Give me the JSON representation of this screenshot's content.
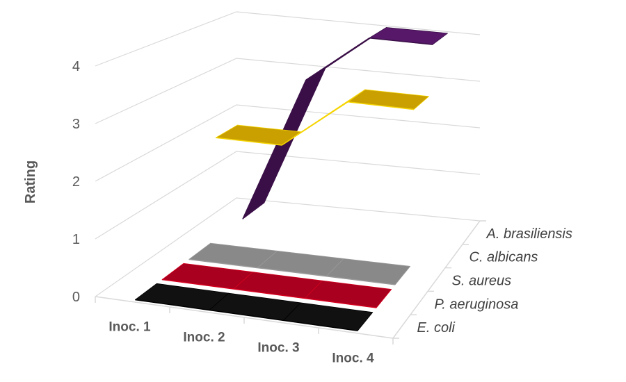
{
  "chart_data": {
    "type": "line",
    "variant": "3d-ribbon",
    "title": "",
    "ylabel": "Rating",
    "xlabel": "",
    "ylim": [
      0,
      4
    ],
    "yticks": [
      "0",
      "1",
      "2",
      "3",
      "4"
    ],
    "categories": [
      "Inoc. 1",
      "Inoc. 2",
      "Inoc. 3",
      "Inoc. 4"
    ],
    "grid": true,
    "series": [
      {
        "name": "E. coli",
        "values": [
          0,
          0,
          0,
          0
        ],
        "color": "#111111",
        "edge": "#000000"
      },
      {
        "name": "P. aeruginosa",
        "values": [
          0,
          0,
          0,
          0
        ],
        "color": "#a8001e",
        "edge": "#d4001f"
      },
      {
        "name": "S. aureus",
        "values": [
          0,
          0,
          0,
          0
        ],
        "color": "#898989",
        "edge": "#9a9a9a"
      },
      {
        "name": "C. albicans",
        "values": [
          2,
          2,
          3,
          3
        ],
        "color": "#c9a000",
        "edge": "#f5d400"
      },
      {
        "name": "A. brasiliensis",
        "values": [
          0,
          3,
          4,
          4
        ],
        "color": "#57186a",
        "edge": "#3a0f47"
      }
    ]
  }
}
